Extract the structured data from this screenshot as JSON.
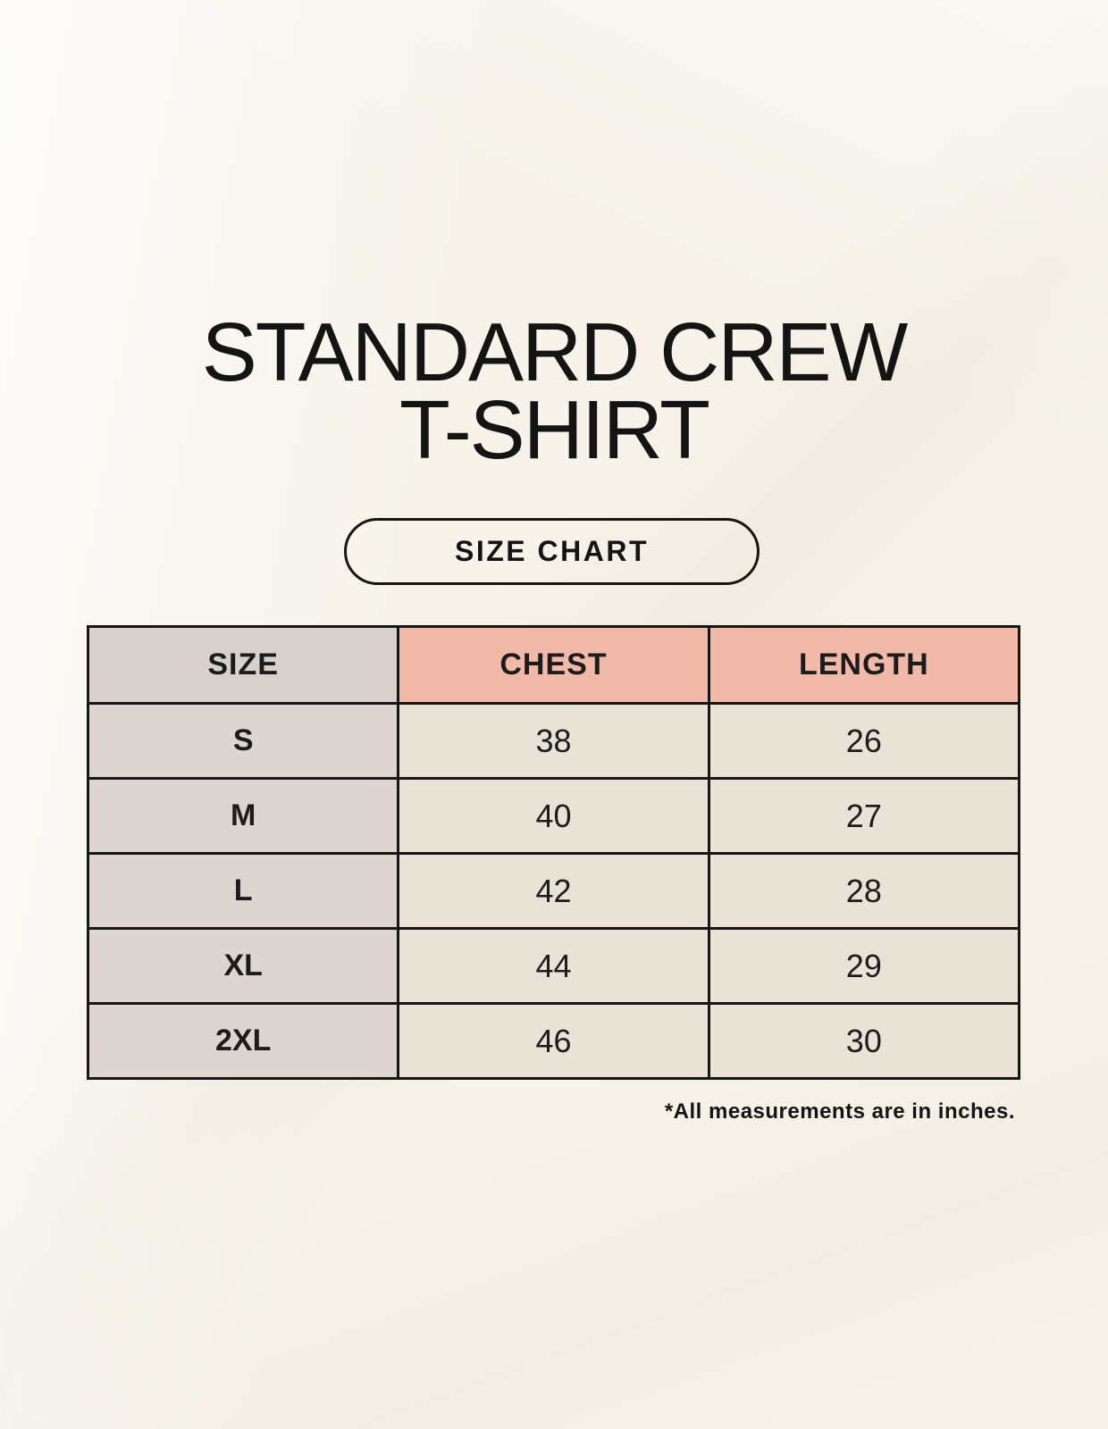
{
  "page": {
    "title_line1": "STANDARD CREW",
    "title_line2": "T-SHIRT",
    "button_label": "SIZE CHART",
    "footnote": "*All measurements are in inches."
  },
  "colors": {
    "background": "#f7f3ea",
    "header_size_bg": "#d7d0cb",
    "header_measure_bg": "#f1baa8",
    "row_label_bg": "#ddd6d0",
    "row_value_bg": "#e9e2d6",
    "border": "#161616",
    "text": "#141414"
  },
  "table": {
    "columns": [
      "SIZE",
      "CHEST",
      "LENGTH"
    ],
    "rows": [
      {
        "size": "S",
        "chest": "38",
        "length": "26"
      },
      {
        "size": "M",
        "chest": "40",
        "length": "27"
      },
      {
        "size": "L",
        "chest": "42",
        "length": "28"
      },
      {
        "size": "XL",
        "chest": "44",
        "length": "29"
      },
      {
        "size": "2XL",
        "chest": "46",
        "length": "30"
      }
    ]
  },
  "chart_data": {
    "type": "table",
    "title": "STANDARD CREW T-SHIRT — SIZE CHART",
    "columns": [
      "SIZE",
      "CHEST",
      "LENGTH"
    ],
    "rows": [
      [
        "S",
        38,
        26
      ],
      [
        "M",
        40,
        27
      ],
      [
        "L",
        42,
        28
      ],
      [
        "XL",
        44,
        29
      ],
      [
        "2XL",
        46,
        30
      ]
    ],
    "units": "inches"
  }
}
